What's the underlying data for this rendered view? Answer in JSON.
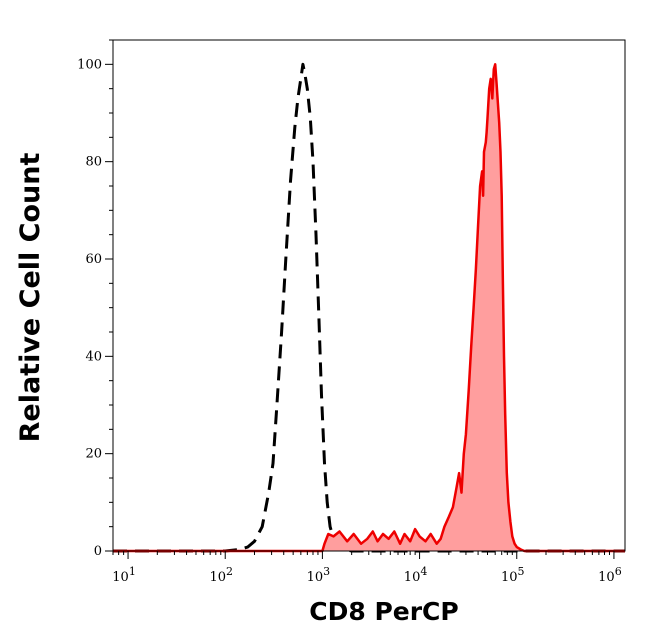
{
  "chart_data": {
    "type": "area",
    "title": "",
    "xlabel": "CD8 PerCP",
    "ylabel": "Relative Cell Count",
    "x_scale": "log",
    "xlim": [
      7,
      1300000
    ],
    "ylim": [
      0,
      105
    ],
    "x_ticks": [
      {
        "value": 10,
        "base": "10",
        "exp": "1"
      },
      {
        "value": 100,
        "base": "10",
        "exp": "2"
      },
      {
        "value": 1000,
        "base": "10",
        "exp": "3"
      },
      {
        "value": 10000,
        "base": "10",
        "exp": "4"
      },
      {
        "value": 100000,
        "base": "10",
        "exp": "5"
      },
      {
        "value": 1000000,
        "base": "10",
        "exp": "6"
      }
    ],
    "y_ticks": [
      0,
      20,
      40,
      60,
      80,
      100
    ],
    "grid": false,
    "legend": "none",
    "series": [
      {
        "style": "dashed",
        "color": "#000000",
        "fill": "none",
        "points": [
          [
            7,
            0
          ],
          [
            100,
            0
          ],
          [
            140,
            0.3
          ],
          [
            170,
            0.8
          ],
          [
            200,
            2
          ],
          [
            240,
            5
          ],
          [
            280,
            12
          ],
          [
            310,
            18
          ],
          [
            340,
            30
          ],
          [
            380,
            45
          ],
          [
            420,
            60
          ],
          [
            470,
            76
          ],
          [
            520,
            87
          ],
          [
            560,
            93
          ],
          [
            600,
            97
          ],
          [
            630,
            100
          ],
          [
            660,
            98
          ],
          [
            700,
            95
          ],
          [
            750,
            89
          ],
          [
            800,
            80
          ],
          [
            860,
            65
          ],
          [
            920,
            48
          ],
          [
            980,
            32
          ],
          [
            1050,
            18
          ],
          [
            1120,
            10
          ],
          [
            1200,
            5
          ],
          [
            1300,
            2.5
          ],
          [
            1400,
            1.5
          ],
          [
            1550,
            0.8
          ],
          [
            1700,
            0.3
          ],
          [
            2000,
            0
          ],
          [
            1300000,
            0
          ]
        ]
      },
      {
        "style": "solid",
        "color": "#ee0000",
        "fill": "#ff9e9e",
        "points": [
          [
            7,
            0
          ],
          [
            1000,
            0
          ],
          [
            1050,
            1.5
          ],
          [
            1150,
            3.5
          ],
          [
            1300,
            3
          ],
          [
            1500,
            4
          ],
          [
            1800,
            2
          ],
          [
            2100,
            3.5
          ],
          [
            2500,
            1.5
          ],
          [
            2900,
            2.5
          ],
          [
            3300,
            4
          ],
          [
            3700,
            2
          ],
          [
            4200,
            3.5
          ],
          [
            4800,
            2.5
          ],
          [
            5500,
            4
          ],
          [
            6300,
            1.5
          ],
          [
            7000,
            3.5
          ],
          [
            8000,
            2
          ],
          [
            9000,
            4.5
          ],
          [
            10000,
            3
          ],
          [
            11500,
            2
          ],
          [
            13000,
            3.5
          ],
          [
            15000,
            1.5
          ],
          [
            16500,
            2.5
          ],
          [
            18000,
            5
          ],
          [
            20000,
            7
          ],
          [
            22000,
            9
          ],
          [
            24000,
            13
          ],
          [
            25500,
            16
          ],
          [
            27000,
            12
          ],
          [
            28500,
            20
          ],
          [
            30000,
            24
          ],
          [
            32000,
            33
          ],
          [
            34000,
            42
          ],
          [
            36000,
            50
          ],
          [
            38000,
            58
          ],
          [
            40000,
            67
          ],
          [
            42000,
            75
          ],
          [
            44000,
            78
          ],
          [
            45000,
            73
          ],
          [
            46000,
            82
          ],
          [
            48000,
            84
          ],
          [
            49000,
            86
          ],
          [
            50000,
            89
          ],
          [
            52000,
            95
          ],
          [
            54000,
            97
          ],
          [
            56000,
            93
          ],
          [
            58000,
            99
          ],
          [
            60000,
            100
          ],
          [
            62000,
            96
          ],
          [
            64000,
            92
          ],
          [
            66000,
            88
          ],
          [
            68000,
            82
          ],
          [
            70000,
            73
          ],
          [
            72000,
            55
          ],
          [
            74000,
            40
          ],
          [
            76000,
            28
          ],
          [
            79000,
            16
          ],
          [
            82000,
            10
          ],
          [
            86000,
            6
          ],
          [
            90000,
            3
          ],
          [
            95000,
            1.5
          ],
          [
            100000,
            0.8
          ],
          [
            110000,
            0.3
          ],
          [
            120000,
            0
          ],
          [
            1300000,
            0
          ]
        ]
      }
    ]
  }
}
